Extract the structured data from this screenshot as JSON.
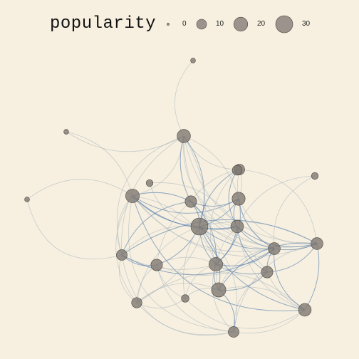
{
  "legend": {
    "title": "popularity",
    "items": [
      {
        "label": "0",
        "value": 0
      },
      {
        "label": "10",
        "value": 10
      },
      {
        "label": "20",
        "value": 20
      },
      {
        "label": "30",
        "value": 30
      }
    ]
  },
  "colors": {
    "background": "#f7f0e0",
    "node_fill": "#7d7670",
    "node_stroke": "#4a4540",
    "edge_light": "#9aa9b8",
    "edge_strong": "#3f6fa8"
  },
  "nodes": [
    {
      "id": "n0",
      "popularity": 30
    },
    {
      "id": "n1",
      "popularity": 12
    },
    {
      "id": "n2",
      "popularity": 10
    },
    {
      "id": "n3",
      "popularity": 16
    },
    {
      "id": "n4",
      "popularity": 1
    },
    {
      "id": "n5",
      "popularity": 1
    },
    {
      "id": "n6",
      "popularity": 1
    },
    {
      "id": "n7",
      "popularity": 3
    },
    {
      "id": "n8",
      "popularity": 18
    },
    {
      "id": "n9",
      "popularity": 17
    },
    {
      "id": "n10",
      "popularity": 20
    },
    {
      "id": "n11",
      "popularity": 15
    },
    {
      "id": "n12",
      "popularity": 3
    },
    {
      "id": "n13",
      "popularity": 10
    },
    {
      "id": "n14",
      "popularity": 13
    },
    {
      "id": "n15",
      "popularity": 12
    },
    {
      "id": "n16",
      "popularity": 18
    },
    {
      "id": "n17",
      "popularity": 12
    },
    {
      "id": "n18",
      "popularity": 15
    },
    {
      "id": "n19",
      "popularity": 10
    },
    {
      "id": "n20",
      "popularity": 4
    },
    {
      "id": "n21",
      "popularity": 9
    },
    {
      "id": "n22",
      "popularity": 13
    },
    {
      "id": "n23",
      "popularity": 8
    }
  ]
}
